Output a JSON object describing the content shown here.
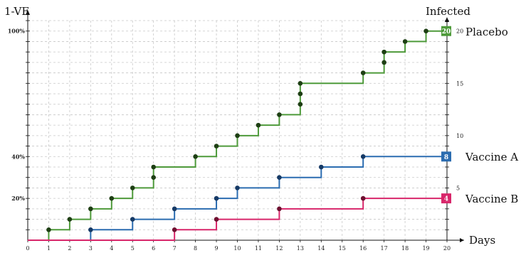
{
  "chart_data": {
    "type": "line",
    "step": true,
    "left_axis_title": "1-VE",
    "right_axis_title": "Infected",
    "x_axis_title": "Days",
    "x": {
      "min": 0,
      "max": 20,
      "ticks": [
        "0",
        "1",
        "2",
        "3",
        "4",
        "5",
        "6",
        "7",
        "8",
        "9",
        "10",
        "11",
        "12",
        "13",
        "14",
        "15",
        "16",
        "17",
        "18",
        "19",
        "20"
      ]
    },
    "y_right": {
      "min": 0,
      "max": 21,
      "ticks": [
        {
          "value": 5,
          "label": "5"
        },
        {
          "value": 10,
          "label": "10"
        },
        {
          "value": 15,
          "label": "15"
        },
        {
          "value": 20,
          "label": "20"
        }
      ]
    },
    "y_left_labels": [
      {
        "value": 4,
        "label": "20%"
      },
      {
        "value": 8,
        "label": "40%"
      },
      {
        "value": 20,
        "label": "100%"
      }
    ],
    "grid": true,
    "series": [
      {
        "name": "Placebo",
        "color": "#4e9a3a",
        "dot_color": "#1e3f14",
        "final_count": "20",
        "events": [
          {
            "day": 1,
            "count": 1
          },
          {
            "day": 2,
            "count": 2
          },
          {
            "day": 3,
            "count": 3
          },
          {
            "day": 4,
            "count": 4
          },
          {
            "day": 5,
            "count": 5
          },
          {
            "day": 6,
            "count": 6
          },
          {
            "day": 6,
            "count": 7
          },
          {
            "day": 8,
            "count": 8
          },
          {
            "day": 9,
            "count": 9
          },
          {
            "day": 10,
            "count": 10
          },
          {
            "day": 11,
            "count": 11
          },
          {
            "day": 12,
            "count": 12
          },
          {
            "day": 13,
            "count": 13
          },
          {
            "day": 13,
            "count": 14
          },
          {
            "day": 13,
            "count": 15
          },
          {
            "day": 16,
            "count": 16
          },
          {
            "day": 17,
            "count": 17
          },
          {
            "day": 17,
            "count": 18
          },
          {
            "day": 18,
            "count": 19
          },
          {
            "day": 19,
            "count": 20
          }
        ]
      },
      {
        "name": "Vaccine A",
        "color": "#2b6cb0",
        "dot_color": "#163a66",
        "final_count": "8",
        "events": [
          {
            "day": 3,
            "count": 1
          },
          {
            "day": 5,
            "count": 2
          },
          {
            "day": 7,
            "count": 3
          },
          {
            "day": 9,
            "count": 4
          },
          {
            "day": 10,
            "count": 5
          },
          {
            "day": 12,
            "count": 6
          },
          {
            "day": 14,
            "count": 7
          },
          {
            "day": 16,
            "count": 8
          }
        ]
      },
      {
        "name": "Vaccine B",
        "color": "#d8266a",
        "dot_color": "#6e1030",
        "final_count": "4",
        "events": [
          {
            "day": 7,
            "count": 1
          },
          {
            "day": 9,
            "count": 2
          },
          {
            "day": 12,
            "count": 3
          },
          {
            "day": 16,
            "count": 4
          }
        ]
      }
    ]
  }
}
